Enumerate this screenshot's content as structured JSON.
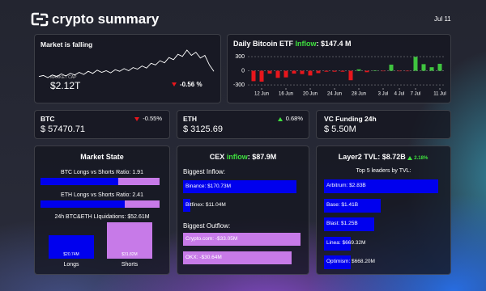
{
  "header": {
    "brand": "crypto summary",
    "date": "Jul 11"
  },
  "market": {
    "title": "Market is falling",
    "cap_label": "MARKET CAP",
    "cap": "$2.12T",
    "change": "-0.56 %"
  },
  "tickers": [
    {
      "name": "BTC",
      "price": "$ 57470.71",
      "change": "-0.55%",
      "direction": "down"
    },
    {
      "name": "ETH",
      "price": "$ 3125.69",
      "change": "0.68%",
      "direction": "up"
    },
    {
      "name": "VC Funding 24h",
      "price": "$ 5.50M"
    }
  ],
  "chart_data": [
    {
      "type": "line",
      "color": "#ffffff",
      "values": [
        0.3,
        0.32,
        0.28,
        0.33,
        0.3,
        0.35,
        0.31,
        0.36,
        0.33,
        0.38,
        0.34,
        0.4,
        0.36,
        0.42,
        0.38,
        0.41,
        0.37,
        0.43,
        0.4,
        0.45,
        0.41,
        0.47,
        0.44,
        0.5,
        0.46,
        0.55,
        0.52,
        0.6,
        0.56,
        0.66,
        0.62,
        0.72,
        0.68,
        0.8,
        0.7,
        0.76,
        0.65,
        0.7,
        0.52,
        0.4
      ]
    },
    {
      "type": "bar",
      "title": "Daily Bitcoin ETF",
      "title_highlight": "Inflow",
      "title_value": ": $147.4 M",
      "categories": [
        null,
        "12 Jun",
        null,
        null,
        "16 Jun",
        null,
        null,
        "20 Jun",
        null,
        null,
        "24 Jun",
        null,
        null,
        "28 Jun",
        null,
        null,
        "3 Jul",
        null,
        "4 Jul",
        null,
        "7 Jul",
        null,
        null,
        "11 Jul"
      ],
      "values": [
        -220,
        -230,
        -60,
        -150,
        -140,
        -60,
        -70,
        -100,
        -50,
        -20,
        -20,
        -20,
        -200,
        30,
        -30,
        10,
        -10,
        130,
        -10,
        -10,
        295,
        140,
        75,
        147.4
      ],
      "colors": {
        "positive": "#3fc43f",
        "negative": "#e8161c"
      },
      "ylim": [
        -350,
        420
      ],
      "yticks": [
        -300,
        0,
        300
      ],
      "grid": true
    }
  ],
  "market_state": {
    "title": "Market State",
    "ratios": [
      {
        "label": "BTC Longs vs Shorts Ratio: 1.91",
        "value": 1.91
      },
      {
        "label": "ETH Longs vs Shorts Ratio: 2.41",
        "value": 2.41
      }
    ],
    "liquidations": {
      "label": "24h BTC&ETH LIquidations: $52.61M",
      "categories": [
        "Longs",
        "Shorts"
      ],
      "values": [
        20.74,
        31.82
      ],
      "value_labels": [
        "$20.74M",
        "$31.82M"
      ],
      "colors": [
        "#0000ee",
        "#c77ae8"
      ]
    }
  },
  "cex": {
    "title": "CEX",
    "title_highlight": "inflow",
    "title_value": ": $87.9M",
    "inflow": {
      "label": "Biggest Inflow:",
      "labels": [
        "Binance: $170.73M",
        "Bitfinex: $11.04M"
      ],
      "values": [
        170.73,
        11.04
      ],
      "color": "#0000ee"
    },
    "outflow": {
      "label": "Biggest Outflow:",
      "labels": [
        "Crypto.com: -$33.05M",
        "OKX: -$30.64M"
      ],
      "values": [
        -33.05,
        -30.64
      ],
      "color": "#c77ae8"
    }
  },
  "layer2": {
    "title": "Layer2 TVL: $8.72B",
    "change": "2.18%",
    "subtitle": "Top 5 leaders by TVL:",
    "labels": [
      "Arbitrum: $2.83B",
      "Base: $1.41B",
      "Blast: $1.25B",
      "Linea: $669.32M",
      "Optimism: $668.20M"
    ],
    "values": [
      2.83,
      1.41,
      1.25,
      0.66932,
      0.6682
    ],
    "color": "#0000ee"
  }
}
